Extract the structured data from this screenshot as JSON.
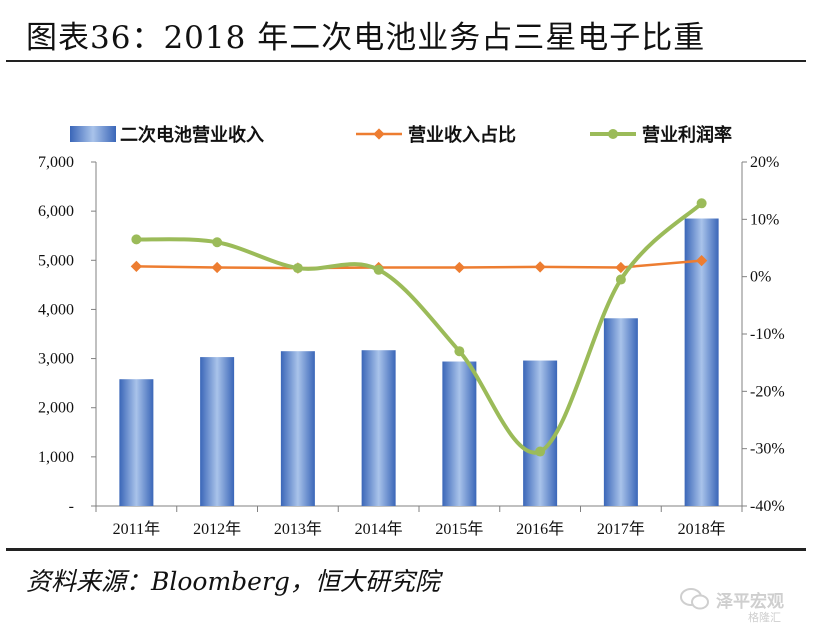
{
  "header": {
    "title": "图表36：2018 年二次电池业务占三星电子比重"
  },
  "footer": {
    "source": "资料来源：Bloomberg，恒大研究院"
  },
  "watermark": {
    "line1": "泽平宏观",
    "line2": "格隆汇"
  },
  "colors": {
    "bar": "#4a79c9",
    "bar_light": "#a9c3ea",
    "share": "#ed7d31",
    "margin": "#9bbb59",
    "axis": "#808080"
  },
  "chart_data": {
    "type": "bar",
    "categories": [
      "2011年",
      "2012年",
      "2013年",
      "2014年",
      "2015年",
      "2016年",
      "2017年",
      "2018年"
    ],
    "series": [
      {
        "name": "二次电池营业收入",
        "type": "bar",
        "axis": "left",
        "values": [
          2580,
          3030,
          3150,
          3170,
          2940,
          2960,
          3820,
          5850
        ]
      },
      {
        "name": "营业收入占比",
        "type": "line",
        "axis": "right",
        "values": [
          1.8,
          1.6,
          1.5,
          1.6,
          1.6,
          1.7,
          1.6,
          2.8
        ]
      },
      {
        "name": "营业利润率",
        "type": "line",
        "axis": "right",
        "smooth": true,
        "values": [
          6.5,
          6.0,
          1.5,
          1.2,
          -13.0,
          -30.5,
          -0.5,
          12.8
        ]
      }
    ],
    "y_left": {
      "min": 0,
      "max": 7000,
      "ticks": [
        "-",
        "1,000",
        "2,000",
        "3,000",
        "4,000",
        "5,000",
        "6,000",
        "7,000"
      ]
    },
    "y_right": {
      "min": -40,
      "max": 20,
      "ticks": [
        "-40%",
        "-30%",
        "-20%",
        "-10%",
        "0%",
        "10%",
        "20%"
      ]
    },
    "legend_position": "top",
    "grid": false
  }
}
